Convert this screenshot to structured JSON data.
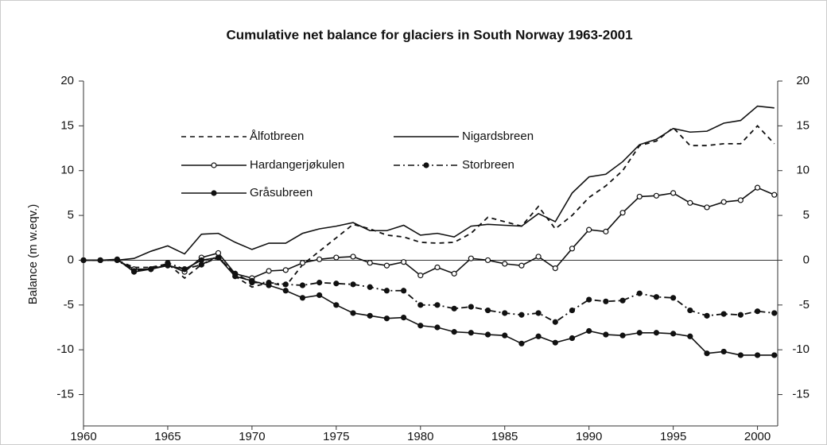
{
  "chart_data": {
    "type": "line",
    "title": "Cumulative net balance for glaciers in South Norway 1963-2001",
    "y_label": "Balance (m w.eqv.)",
    "x": [
      1960,
      1961,
      1962,
      1963,
      1964,
      1965,
      1966,
      1967,
      1968,
      1969,
      1970,
      1971,
      1972,
      1973,
      1974,
      1975,
      1976,
      1977,
      1978,
      1979,
      1980,
      1981,
      1982,
      1983,
      1984,
      1985,
      1986,
      1987,
      1988,
      1989,
      1990,
      1991,
      1992,
      1993,
      1994,
      1995,
      1996,
      1997,
      1998,
      1999,
      2000,
      2001
    ],
    "xlim": [
      1960,
      2001.2
    ],
    "xticks": [
      1960,
      1965,
      1970,
      1975,
      1980,
      1985,
      1990,
      1995,
      2000
    ],
    "ylim": [
      -18.5,
      20
    ],
    "yticks": [
      -15,
      -10,
      -5,
      0,
      5,
      10,
      15,
      20
    ],
    "y2lim": [
      -18.5,
      20
    ],
    "y2ticks": [
      -15,
      -10,
      -5,
      0,
      5,
      10,
      15,
      20
    ],
    "series": [
      {
        "name": "Ålfotbreen",
        "color": "#111111",
        "line_style": "dashed",
        "marker": "none",
        "values": [
          0,
          0,
          0,
          -0.8,
          -0.8,
          -0.4,
          -2,
          -0.5,
          0.5,
          -1.8,
          -3,
          -2.5,
          -2.9,
          -0.5,
          1,
          2.5,
          4,
          3.5,
          2.8,
          2.6,
          2,
          1.9,
          2,
          3,
          4.8,
          4.3,
          3.8,
          6,
          3.5,
          5,
          7,
          8.3,
          10,
          12.8,
          13.3,
          14.8,
          12.8,
          12.8,
          13,
          13,
          15,
          13
        ]
      },
      {
        "name": "Nigardsbreen",
        "color": "#111111",
        "line_style": "solid",
        "marker": "none",
        "values": [
          0,
          0,
          0,
          0.2,
          1,
          1.6,
          0.7,
          2.9,
          3,
          2,
          1.2,
          1.9,
          1.9,
          3,
          3.5,
          3.8,
          4.2,
          3.3,
          3.3,
          3.9,
          2.8,
          3,
          2.6,
          3.8,
          4,
          3.9,
          3.8,
          5.2,
          4.3,
          7.5,
          9.3,
          9.6,
          11,
          12.9,
          13.5,
          14.7,
          14.3,
          14.4,
          15.3,
          15.6,
          17.2,
          17
        ]
      },
      {
        "name": "Hardangerjøkulen",
        "color": "#111111",
        "line_style": "solid",
        "marker": "open-circle",
        "values": [
          0,
          0,
          0,
          -1,
          -1,
          -0.5,
          -1.3,
          0.3,
          0.8,
          -1.5,
          -2,
          -1.2,
          -1.1,
          -0.3,
          0.1,
          0.3,
          0.4,
          -0.3,
          -0.6,
          -0.2,
          -1.7,
          -0.8,
          -1.5,
          0.2,
          0,
          -0.4,
          -0.6,
          0.4,
          -0.9,
          1.3,
          3.4,
          3.2,
          5.3,
          7.1,
          7.2,
          7.5,
          6.4,
          5.9,
          6.5,
          6.7,
          8.1,
          7.3
        ]
      },
      {
        "name": "Storbreen",
        "color": "#111111",
        "line_style": "dashdot",
        "marker": "filled-circle",
        "values": [
          0,
          0,
          0,
          -1.2,
          -1,
          -0.3,
          -1,
          -0.5,
          0.3,
          -1.5,
          -2.5,
          -2.5,
          -2.7,
          -2.8,
          -2.5,
          -2.6,
          -2.7,
          -3,
          -3.4,
          -3.4,
          -5,
          -5,
          -5.4,
          -5.2,
          -5.6,
          -5.9,
          -6.1,
          -5.9,
          -6.9,
          -5.6,
          -4.4,
          -4.6,
          -4.5,
          -3.7,
          -4.1,
          -4.2,
          -5.6,
          -6.2,
          -6,
          -6.1,
          -5.7,
          -5.9
        ]
      },
      {
        "name": "Gråsubreen",
        "color": "#111111",
        "line_style": "solid",
        "marker": "filled-circle",
        "values": [
          0,
          0,
          0.1,
          -1.3,
          -1,
          -0.6,
          -1,
          0,
          0.3,
          -1.8,
          -2.3,
          -2.8,
          -3.4,
          -4.2,
          -3.9,
          -5,
          -5.9,
          -6.2,
          -6.5,
          -6.4,
          -7.3,
          -7.5,
          -8,
          -8.1,
          -8.3,
          -8.4,
          -9.3,
          -8.5,
          -9.2,
          -8.7,
          -7.9,
          -8.3,
          -8.4,
          -8.1,
          -8.1,
          -8.2,
          -8.5,
          -10.4,
          -10.2,
          -10.6,
          -10.6,
          -10.6
        ]
      }
    ]
  }
}
